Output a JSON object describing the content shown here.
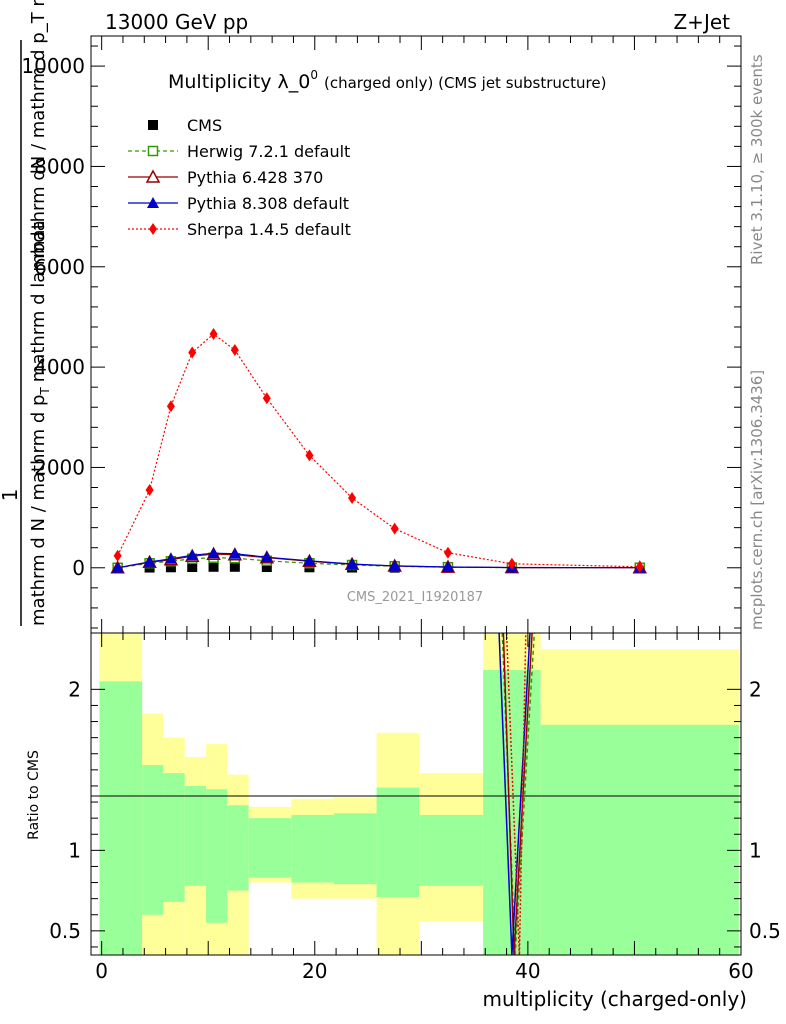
{
  "header": {
    "left": "13000 GeV pp",
    "right": "Z+Jet"
  },
  "side_text": {
    "rivet": "Rivet 3.1.10, ≥ 300k events",
    "mcplots": "mcplots.cern.ch [arXiv:1306.3436]"
  },
  "watermark": "CMS_2021_I1920187",
  "chart_data": [
    {
      "type": "line",
      "title": "Multiplicity λ_0",
      "title_sup": "0",
      "title_suffix": "(charged only) (CMS jet substructure)",
      "ylabel_numerator": "1",
      "ylabel_denominator": "mathrm d N / mathrm d p",
      "ylabel_denom_sub": "T",
      "ylabel_denom_tail": "mathrm d lambda",
      "ylabel_stack": "mathrm dN / mathrm d p_T mathrm d lambda",
      "xlim": [
        -1,
        60
      ],
      "ylim": [
        -1300,
        10600
      ],
      "yticks": [
        {
          "value": 0,
          "label": "0"
        },
        {
          "value": 2000,
          "label": "2000"
        },
        {
          "value": 4000,
          "label": "4000"
        },
        {
          "value": 6000,
          "label": "6000"
        },
        {
          "value": 8000,
          "label": "8000"
        },
        {
          "value": 10000,
          "label": "10000"
        }
      ],
      "x": [
        1.5,
        4.5,
        6.5,
        8.5,
        10.5,
        12.5,
        15.5,
        19.5,
        23.5,
        27.5,
        32.5,
        38.5,
        50.5
      ],
      "series": [
        {
          "name": "CMS",
          "color": "#000000",
          "marker": "square-filled",
          "line": "none",
          "values": [
            0,
            5,
            10,
            15,
            20,
            20,
            15,
            10,
            5,
            3,
            2,
            1,
            0
          ]
        },
        {
          "name": "Herwig 7.2.1 default",
          "color": "#339900",
          "marker": "square-open",
          "line": "dashed",
          "values": [
            0,
            90,
            130,
            180,
            200,
            190,
            140,
            90,
            55,
            30,
            12,
            4,
            1
          ]
        },
        {
          "name": "Pythia 6.428 370",
          "color": "#990000",
          "marker": "triangle-open",
          "line": "solid",
          "values": [
            0,
            110,
            160,
            230,
            270,
            260,
            200,
            130,
            70,
            35,
            14,
            4,
            1
          ]
        },
        {
          "name": "Pythia 8.308 default",
          "color": "#0000cc",
          "marker": "triangle-filled",
          "line": "solid",
          "values": [
            0,
            120,
            180,
            250,
            290,
            280,
            210,
            140,
            75,
            38,
            15,
            5,
            1
          ]
        },
        {
          "name": "Sherpa 1.4.5 default",
          "color": "#ff0000",
          "marker": "diamond-filled",
          "line": "dotted",
          "values": [
            240,
            1550,
            3220,
            4290,
            4660,
            4340,
            3380,
            2240,
            1390,
            780,
            300,
            80,
            20
          ]
        }
      ]
    },
    {
      "type": "area",
      "ylabel": "Ratio to CMS",
      "xlabel": "multiplicity (charged-only)",
      "xlim": [
        -1,
        60
      ],
      "ylim": [
        0.35,
        2.35
      ],
      "xticks": [
        {
          "value": 0,
          "label": "0"
        },
        {
          "value": 20,
          "label": "20"
        },
        {
          "value": 40,
          "label": "40"
        },
        {
          "value": 60,
          "label": "60"
        }
      ],
      "yticks": [
        {
          "value": 0.5,
          "label": "0.5"
        },
        {
          "value": 1,
          "label": "1"
        },
        {
          "value": 2,
          "label": "2"
        }
      ],
      "bands": [
        {
          "x0": -0.2,
          "x1": 3.8,
          "stat_lo": 0.35,
          "stat_hi": 2.05,
          "tot_lo": 0.35,
          "tot_hi": 2.35
        },
        {
          "x0": 3.8,
          "x1": 5.8,
          "stat_lo": 0.6,
          "stat_hi": 1.53,
          "tot_lo": 0.35,
          "tot_hi": 1.85
        },
        {
          "x0": 5.8,
          "x1": 7.8,
          "stat_lo": 0.68,
          "stat_hi": 1.48,
          "tot_lo": 0.35,
          "tot_hi": 1.7
        },
        {
          "x0": 7.8,
          "x1": 9.8,
          "stat_lo": 0.78,
          "stat_hi": 1.4,
          "tot_lo": 0.35,
          "tot_hi": 1.58
        },
        {
          "x0": 9.8,
          "x1": 11.8,
          "stat_lo": 0.55,
          "stat_hi": 1.38,
          "tot_lo": 0.35,
          "tot_hi": 1.66
        },
        {
          "x0": 11.8,
          "x1": 13.8,
          "stat_lo": 0.75,
          "stat_hi": 1.28,
          "tot_lo": 0.35,
          "tot_hi": 1.47
        },
        {
          "x0": 13.8,
          "x1": 17.8,
          "stat_lo": 0.83,
          "stat_hi": 1.2,
          "tot_lo": 0.8,
          "tot_hi": 1.27
        },
        {
          "x0": 17.8,
          "x1": 21.8,
          "stat_lo": 0.8,
          "stat_hi": 1.22,
          "tot_lo": 0.7,
          "tot_hi": 1.32
        },
        {
          "x0": 21.8,
          "x1": 25.8,
          "stat_lo": 0.79,
          "stat_hi": 1.23,
          "tot_lo": 0.7,
          "tot_hi": 1.33
        },
        {
          "x0": 25.8,
          "x1": 29.8,
          "stat_lo": 0.71,
          "stat_hi": 1.39,
          "tot_lo": 0.35,
          "tot_hi": 1.73
        },
        {
          "x0": 29.8,
          "x1": 35.8,
          "stat_lo": 0.78,
          "stat_hi": 1.22,
          "tot_lo": 0.56,
          "tot_hi": 1.48
        },
        {
          "x0": 35.8,
          "x1": 41.2,
          "stat_lo": 0.35,
          "stat_hi": 2.12,
          "tot_lo": 0.35,
          "tot_hi": 2.35
        },
        {
          "x0": 41.2,
          "x1": 59.8,
          "stat_lo": 0.35,
          "stat_hi": 1.78,
          "tot_lo": 0.35,
          "tot_hi": 2.25
        }
      ],
      "ratio_lines": [
        {
          "name": "Herwig 7.2.1 default",
          "color": "#339900",
          "dash": "4,3",
          "points": [
            [
              37.6,
              2.35
            ],
            [
              38.8,
              0.35
            ],
            [
              40.6,
              2.35
            ]
          ]
        },
        {
          "name": "Pythia 6.428 370",
          "color": "#990000",
          "dash": "",
          "points": [
            [
              37.7,
              2.35
            ],
            [
              38.7,
              0.35
            ],
            [
              40.4,
              2.35
            ]
          ]
        },
        {
          "name": "Pythia 8.308 default",
          "color": "#0000cc",
          "dash": "",
          "points": [
            [
              37.3,
              2.35
            ],
            [
              38.5,
              0.35
            ],
            [
              40.2,
              2.35
            ]
          ]
        },
        {
          "name": "Sherpa 1.4.5 default",
          "color": "#ff0000",
          "dash": "2,2",
          "points": [
            [
              38.0,
              2.35
            ],
            [
              39.2,
              0.35
            ],
            [
              39.8,
              2.35
            ]
          ]
        }
      ],
      "colors": {
        "stat": "#99ff99",
        "total": "#ffff99"
      }
    }
  ]
}
